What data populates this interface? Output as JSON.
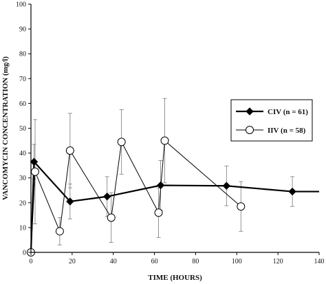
{
  "chart_data": {
    "type": "line",
    "xlabel": "TIME (HOURS)",
    "ylabel": "VANCOMYCIN CONCENTRATION (mg/l)",
    "xlim": [
      0,
      140
    ],
    "ylim": [
      0,
      100
    ],
    "xticks": [
      0,
      20,
      40,
      60,
      80,
      100,
      120,
      140
    ],
    "yticks": [
      0,
      10,
      20,
      30,
      40,
      50,
      60,
      70,
      80,
      90,
      100
    ],
    "grid": false,
    "legend_position": "right",
    "series": [
      {
        "name": "CIV (n = 61)",
        "marker": "filled-diamond",
        "color": "#000000",
        "x": [
          0,
          1.5,
          19,
          37,
          63,
          95,
          127,
          140
        ],
        "y": [
          0,
          36.5,
          20.5,
          22.5,
          27,
          26.8,
          24.5,
          24.5
        ],
        "error": [
          null,
          7,
          7,
          8,
          10,
          8,
          6,
          null
        ]
      },
      {
        "name": "IIV (n = 58)",
        "marker": "open-circle",
        "color": "#000000",
        "x": [
          0,
          2,
          14,
          19,
          39,
          44,
          62,
          65,
          102
        ],
        "y": [
          0,
          32.5,
          8.5,
          41,
          14,
          44.5,
          16,
          45,
          18.5
        ],
        "error": [
          null,
          21,
          5.5,
          15,
          10,
          13,
          10,
          17,
          10
        ]
      }
    ]
  }
}
